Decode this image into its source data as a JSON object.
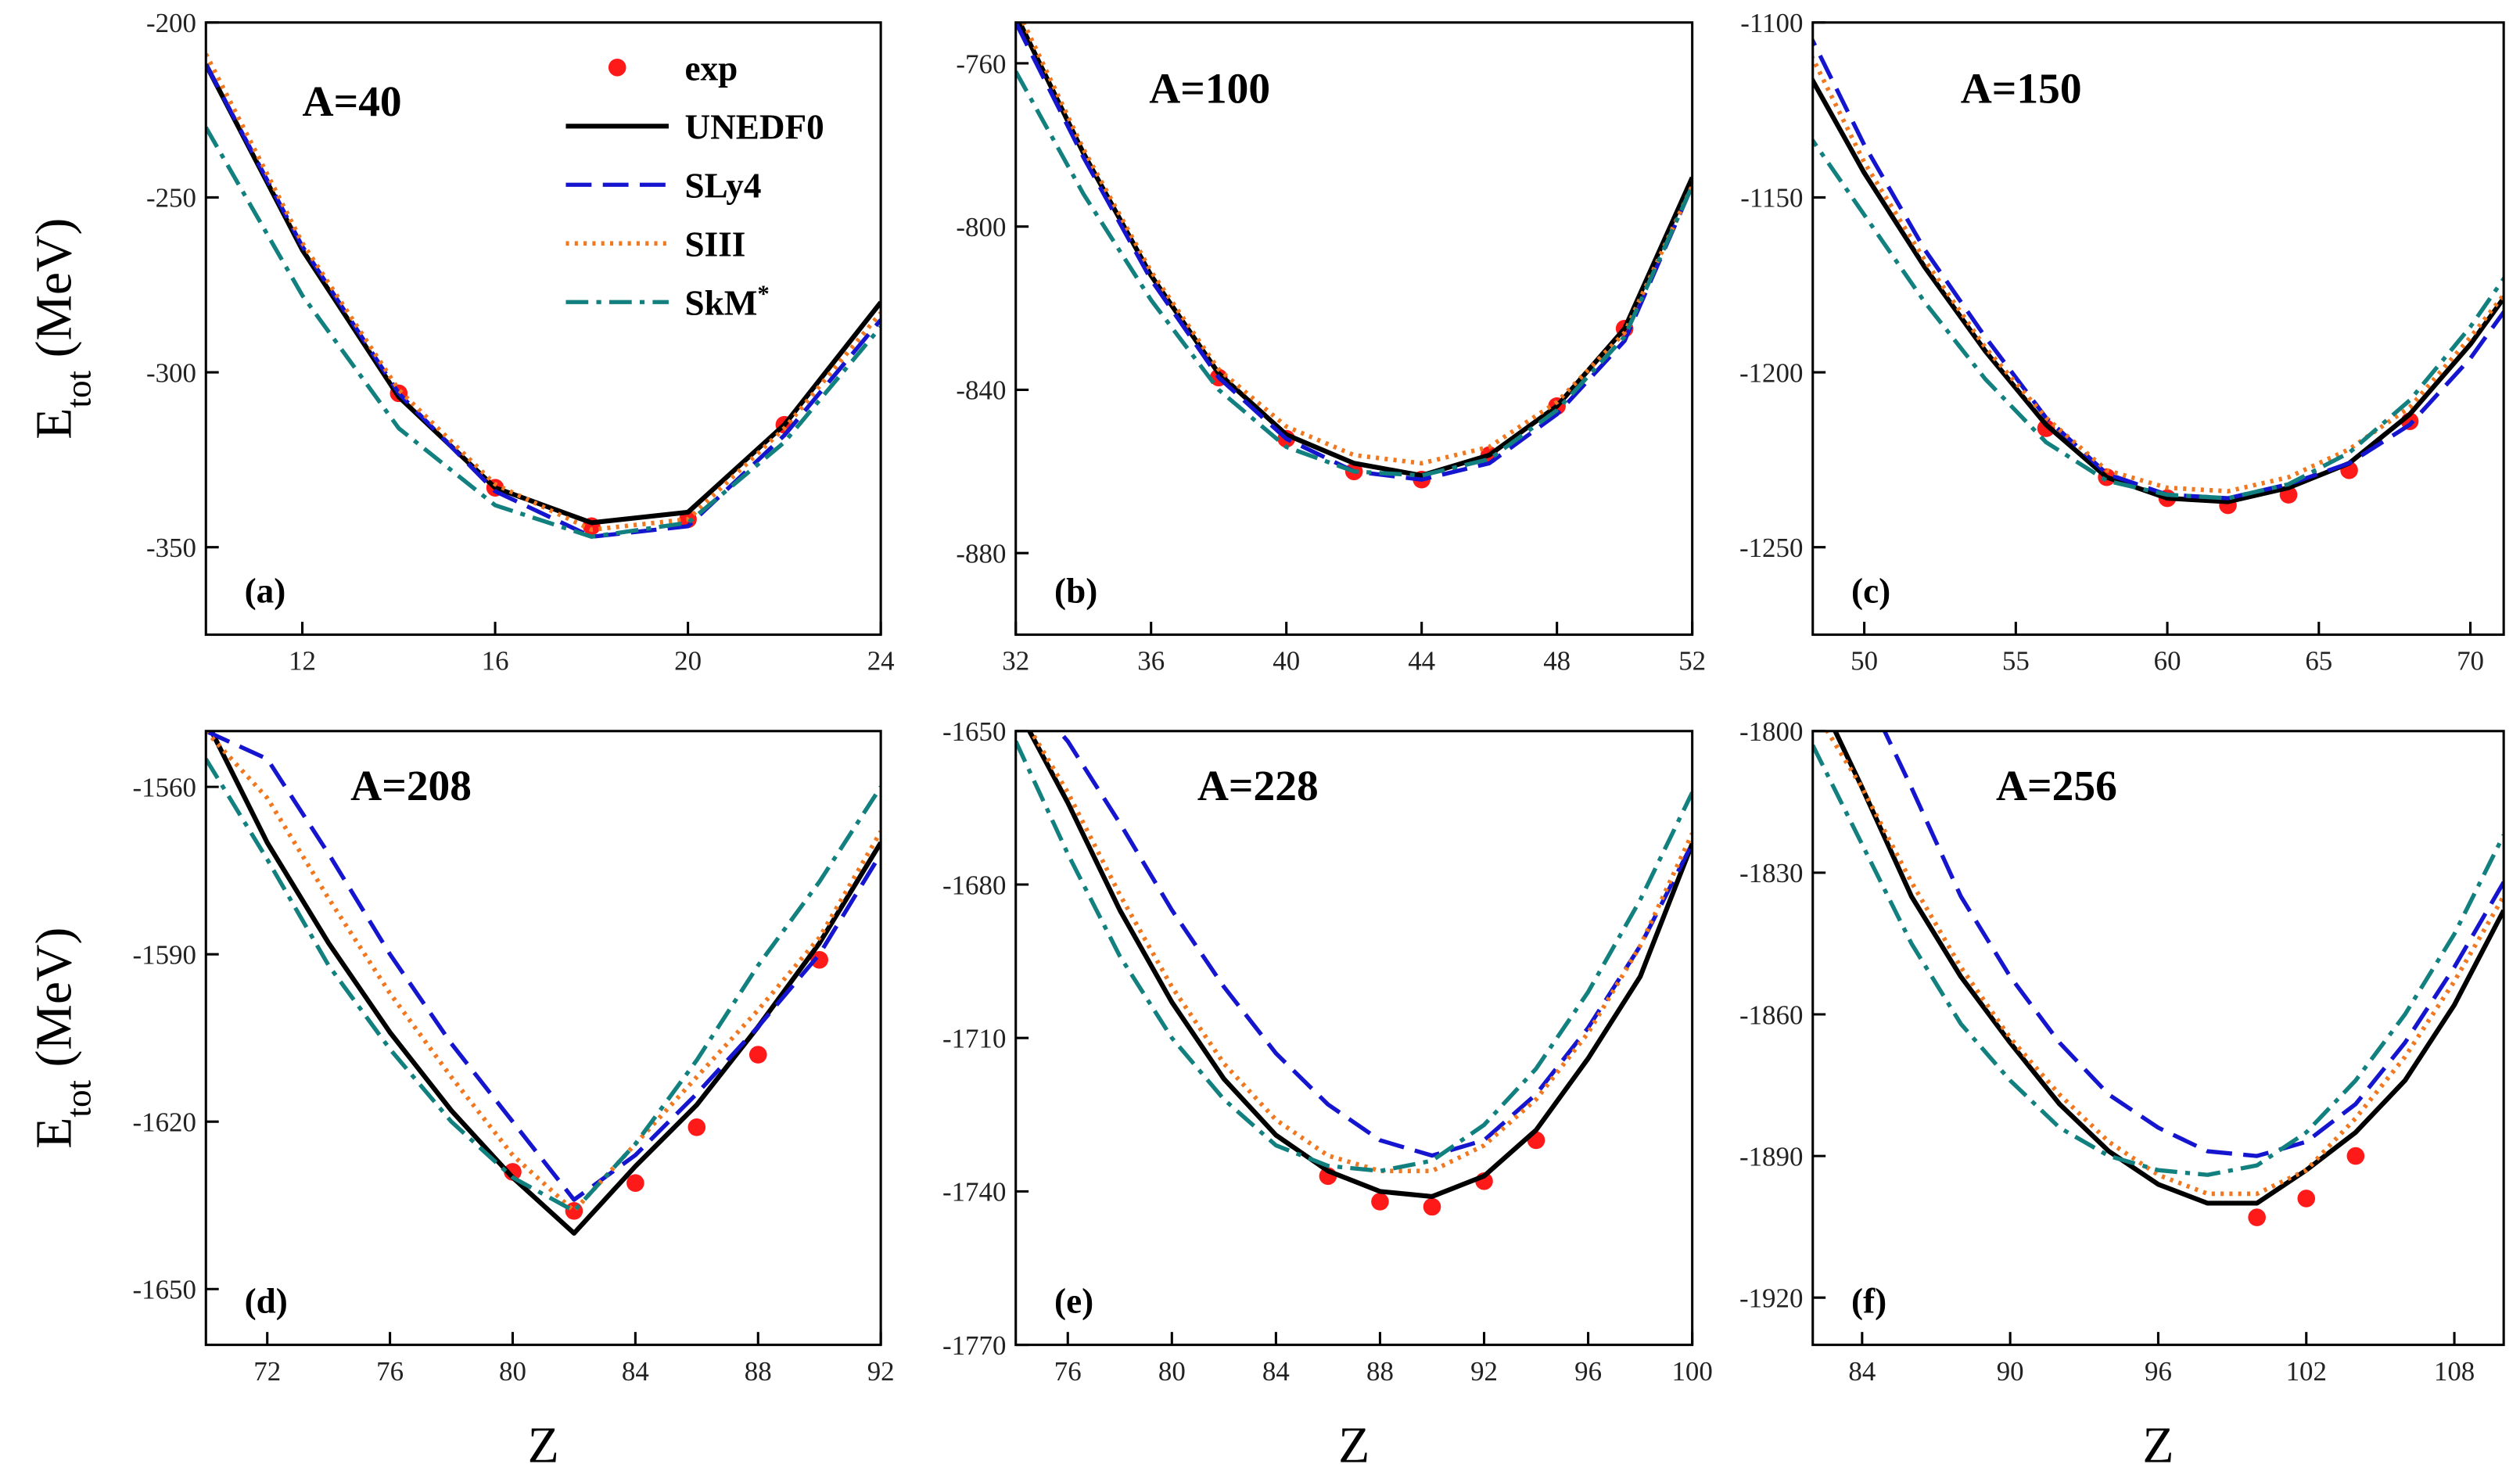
{
  "chart_data": [
    {
      "type": "line",
      "title": "A=40",
      "panel_label": "(a)",
      "legend": "upper right",
      "ylabel": {
        "base": "E",
        "sub": "tot",
        "unit": "(MeV)"
      },
      "xlim": [
        10,
        24
      ],
      "xticks": [
        12,
        16,
        20,
        24
      ],
      "ylim": [
        -375,
        -200
      ],
      "yticks": [
        -200,
        -250,
        -300,
        -350
      ],
      "series": [
        {
          "name": "exp",
          "type": "scatter",
          "color": "#ff1a1a",
          "x": [
            14,
            16,
            18,
            20,
            22
          ],
          "values": [
            -306,
            -333,
            -344,
            -342,
            -315
          ]
        },
        {
          "name": "UNEDF0",
          "color": "#000000",
          "style": "solid",
          "x": [
            10,
            12,
            14,
            16,
            18,
            20,
            22,
            24
          ],
          "values": [
            -212,
            -265,
            -307,
            -333,
            -343,
            -340,
            -315,
            -280
          ]
        },
        {
          "name": "SLy4",
          "color": "#1515d0",
          "style": "dashed",
          "x": [
            10,
            12,
            14,
            16,
            18,
            20,
            22,
            24
          ],
          "values": [
            -212,
            -264,
            -306,
            -334,
            -347,
            -344,
            -318,
            -285
          ]
        },
        {
          "name": "SIII",
          "color": "#f07820",
          "style": "dotted",
          "x": [
            10,
            12,
            14,
            16,
            18,
            20,
            22,
            24
          ],
          "values": [
            -209,
            -263,
            -305,
            -332,
            -345,
            -342,
            -316,
            -283
          ]
        },
        {
          "name": "SkM*",
          "color": "#138080",
          "style": "dashdot",
          "x": [
            10,
            12,
            14,
            16,
            18,
            20,
            22,
            24
          ],
          "values": [
            -230,
            -278,
            -316,
            -338,
            -347,
            -343,
            -320,
            -287
          ]
        }
      ]
    },
    {
      "type": "line",
      "title": "A=100",
      "panel_label": "(b)",
      "xlim": [
        32,
        52
      ],
      "xticks": [
        32,
        36,
        40,
        44,
        48,
        52
      ],
      "ylim": [
        -900,
        -750
      ],
      "yticks": [
        -760,
        -800,
        -840,
        -880
      ],
      "series": [
        {
          "type": "scatter",
          "color": "#ff1a1a",
          "x": [
            38,
            40,
            42,
            44,
            46,
            48,
            50
          ],
          "values": [
            -837,
            -852,
            -860,
            -862,
            -856,
            -844,
            -825
          ]
        },
        {
          "color": "#000000",
          "style": "solid",
          "x": [
            32,
            34,
            36,
            38,
            40,
            42,
            44,
            46,
            48,
            50,
            52
          ],
          "values": [
            -748,
            -782,
            -812,
            -836,
            -851,
            -858,
            -861,
            -856,
            -844,
            -825,
            -788
          ]
        },
        {
          "color": "#1515d0",
          "style": "dashed",
          "x": [
            32,
            34,
            36,
            38,
            40,
            42,
            44,
            46,
            48,
            50,
            52
          ],
          "values": [
            -750,
            -783,
            -813,
            -837,
            -852,
            -860,
            -862,
            -858,
            -846,
            -828,
            -790
          ]
        },
        {
          "color": "#f07820",
          "style": "dotted",
          "x": [
            32,
            34,
            36,
            38,
            40,
            42,
            44,
            46,
            48,
            50,
            52
          ],
          "values": [
            -746,
            -781,
            -811,
            -835,
            -849,
            -856,
            -858,
            -854,
            -843,
            -826,
            -790
          ]
        },
        {
          "color": "#138080",
          "style": "dashdot",
          "x": [
            32,
            34,
            36,
            38,
            40,
            42,
            44,
            46,
            48,
            50,
            52
          ],
          "values": [
            -762,
            -792,
            -818,
            -840,
            -854,
            -860,
            -861,
            -857,
            -845,
            -827,
            -790
          ]
        }
      ]
    },
    {
      "type": "line",
      "title": "A=150",
      "panel_label": "(c)",
      "xlim": [
        48.3,
        71.1
      ],
      "xticks": [
        50,
        55,
        60,
        65,
        70
      ],
      "ylim": [
        -1275,
        -1100
      ],
      "yticks": [
        -1100,
        -1150,
        -1200,
        -1250
      ],
      "series": [
        {
          "type": "scatter",
          "color": "#ff1a1a",
          "x": [
            56,
            58,
            60,
            62,
            64,
            66,
            68
          ],
          "values": [
            -1216,
            -1230,
            -1236,
            -1238,
            -1235,
            -1228,
            -1214
          ]
        },
        {
          "color": "#000000",
          "style": "solid",
          "x": [
            48,
            50,
            52,
            54,
            56,
            58,
            60,
            62,
            64,
            66,
            68,
            70,
            72
          ],
          "values": [
            -1112,
            -1143,
            -1170,
            -1194,
            -1215,
            -1230,
            -1236,
            -1237,
            -1233,
            -1226,
            -1212,
            -1192,
            -1168
          ]
        },
        {
          "color": "#1515d0",
          "style": "dashed",
          "x": [
            48,
            50,
            52,
            54,
            56,
            58,
            60,
            62,
            64,
            66,
            68,
            70,
            72
          ],
          "values": [
            -1100,
            -1135,
            -1165,
            -1190,
            -1213,
            -1229,
            -1235,
            -1236,
            -1232,
            -1226,
            -1215,
            -1196,
            -1172
          ]
        },
        {
          "color": "#f07820",
          "style": "dotted",
          "x": [
            48,
            50,
            52,
            54,
            56,
            58,
            60,
            62,
            64,
            66,
            68,
            70,
            72
          ],
          "values": [
            -1105,
            -1140,
            -1168,
            -1193,
            -1213,
            -1228,
            -1233,
            -1234,
            -1230,
            -1222,
            -1210,
            -1190,
            -1168
          ]
        },
        {
          "color": "#138080",
          "style": "dashdot",
          "x": [
            48,
            50,
            52,
            54,
            56,
            58,
            60,
            62,
            64,
            66,
            68,
            70,
            72
          ],
          "values": [
            -1130,
            -1155,
            -1180,
            -1202,
            -1220,
            -1231,
            -1235,
            -1236,
            -1232,
            -1223,
            -1208,
            -1187,
            -1162
          ]
        }
      ]
    },
    {
      "type": "line",
      "title": "A=208",
      "panel_label": "(d)",
      "xlabel": "Z",
      "ylabel": {
        "base": "E",
        "sub": "tot",
        "unit": "(MeV)"
      },
      "xlim": [
        70,
        92
      ],
      "xticks": [
        72,
        76,
        80,
        84,
        88,
        92
      ],
      "ylim": [
        -1660,
        -1550
      ],
      "yticks": [
        -1560,
        -1590,
        -1620,
        -1650
      ],
      "series": [
        {
          "type": "scatter",
          "color": "#ff1a1a",
          "x": [
            80,
            82,
            84,
            86,
            88,
            90
          ],
          "values": [
            -1629,
            -1636,
            -1631,
            -1621,
            -1608,
            -1591
          ]
        },
        {
          "color": "#000000",
          "style": "solid",
          "x": [
            70,
            72,
            74,
            76,
            78,
            80,
            82,
            84,
            86,
            88,
            90,
            92
          ],
          "values": [
            -1548,
            -1570,
            -1588,
            -1604,
            -1618,
            -1630,
            -1640,
            -1628,
            -1617,
            -1603,
            -1588,
            -1570
          ]
        },
        {
          "color": "#1515d0",
          "style": "dashed",
          "x": [
            70,
            72,
            74,
            76,
            78,
            80,
            82,
            84,
            86,
            88,
            90,
            92
          ],
          "values": [
            -1550,
            -1555,
            -1572,
            -1590,
            -1606,
            -1620,
            -1634,
            -1626,
            -1615,
            -1603,
            -1590,
            -1572
          ]
        },
        {
          "color": "#f07820",
          "style": "dotted",
          "x": [
            70,
            72,
            74,
            76,
            78,
            80,
            82,
            84,
            86,
            88,
            90,
            92
          ],
          "values": [
            -1550,
            -1562,
            -1580,
            -1597,
            -1612,
            -1626,
            -1636,
            -1624,
            -1612,
            -1600,
            -1587,
            -1568
          ]
        },
        {
          "color": "#138080",
          "style": "dashdot",
          "x": [
            70,
            72,
            74,
            76,
            78,
            80,
            82,
            84,
            86,
            88,
            90,
            92
          ],
          "values": [
            -1555,
            -1573,
            -1592,
            -1607,
            -1620,
            -1630,
            -1636,
            -1624,
            -1609,
            -1592,
            -1577,
            -1560
          ]
        }
      ]
    },
    {
      "type": "line",
      "title": "A=228",
      "panel_label": "(e)",
      "xlabel": "Z",
      "xlim": [
        74,
        100
      ],
      "xticks": [
        76,
        80,
        84,
        88,
        92,
        96,
        100
      ],
      "ylim": [
        -1770,
        -1650
      ],
      "yticks": [
        -1650,
        -1680,
        -1710,
        -1740,
        -1770
      ],
      "series": [
        {
          "type": "scatter",
          "color": "#ff1a1a",
          "x": [
            86,
            88,
            90,
            92,
            94
          ],
          "values": [
            -1737,
            -1742,
            -1743,
            -1738,
            -1730
          ]
        },
        {
          "color": "#000000",
          "style": "solid",
          "x": [
            74,
            76,
            78,
            80,
            82,
            84,
            86,
            88,
            90,
            92,
            94,
            96,
            98,
            100
          ],
          "values": [
            -1645,
            -1664,
            -1685,
            -1703,
            -1718,
            -1729,
            -1736,
            -1740,
            -1741,
            -1737,
            -1728,
            -1714,
            -1698,
            -1672
          ]
        },
        {
          "color": "#1515d0",
          "style": "dashed",
          "x": [
            74,
            76,
            78,
            80,
            82,
            84,
            86,
            88,
            90,
            92,
            94,
            96,
            98,
            100
          ],
          "values": [
            -1640,
            -1652,
            -1668,
            -1685,
            -1700,
            -1713,
            -1723,
            -1730,
            -1733,
            -1730,
            -1721,
            -1708,
            -1692,
            -1672
          ]
        },
        {
          "color": "#f07820",
          "style": "dotted",
          "x": [
            74,
            76,
            78,
            80,
            82,
            84,
            86,
            88,
            90,
            92,
            94,
            96,
            98,
            100
          ],
          "values": [
            -1645,
            -1662,
            -1682,
            -1700,
            -1715,
            -1726,
            -1733,
            -1736,
            -1736,
            -1731,
            -1722,
            -1709,
            -1692,
            -1670
          ]
        },
        {
          "color": "#138080",
          "style": "dashdot",
          "x": [
            74,
            76,
            78,
            80,
            82,
            84,
            86,
            88,
            90,
            92,
            94,
            96,
            98,
            100
          ],
          "values": [
            -1652,
            -1674,
            -1694,
            -1710,
            -1722,
            -1731,
            -1735,
            -1736,
            -1734,
            -1727,
            -1716,
            -1701,
            -1683,
            -1662
          ]
        }
      ]
    },
    {
      "type": "line",
      "title": "A=256",
      "panel_label": "(f)",
      "xlabel": "Z",
      "xlim": [
        82,
        110
      ],
      "xticks": [
        84,
        90,
        96,
        102,
        108
      ],
      "ylim": [
        -1930,
        -1800
      ],
      "yticks": [
        -1800,
        -1830,
        -1860,
        -1890,
        -1920
      ],
      "series": [
        {
          "type": "scatter",
          "color": "#ff1a1a",
          "x": [
            100,
            102,
            104
          ],
          "values": [
            -1903,
            -1899,
            -1890
          ]
        },
        {
          "color": "#000000",
          "style": "solid",
          "x": [
            82,
            84,
            86,
            88,
            90,
            92,
            94,
            96,
            98,
            100,
            102,
            104,
            106,
            108,
            110
          ],
          "values": [
            -1790,
            -1812,
            -1835,
            -1852,
            -1866,
            -1879,
            -1889,
            -1896,
            -1900,
            -1900,
            -1893,
            -1885,
            -1874,
            -1858,
            -1838
          ]
        },
        {
          "color": "#1515d0",
          "style": "dashed",
          "x": [
            82,
            84,
            86,
            88,
            90,
            92,
            94,
            96,
            98,
            100,
            102,
            104,
            106,
            108,
            110
          ],
          "values": [
            -1770,
            -1790,
            -1812,
            -1835,
            -1852,
            -1866,
            -1877,
            -1884,
            -1889,
            -1890,
            -1887,
            -1879,
            -1866,
            -1850,
            -1832
          ]
        },
        {
          "color": "#f07820",
          "style": "dotted",
          "x": [
            82,
            84,
            86,
            88,
            90,
            92,
            94,
            96,
            98,
            100,
            102,
            104,
            106,
            108,
            110
          ],
          "values": [
            -1795,
            -1812,
            -1832,
            -1850,
            -1865,
            -1877,
            -1887,
            -1894,
            -1898,
            -1898,
            -1893,
            -1882,
            -1869,
            -1853,
            -1835
          ]
        },
        {
          "color": "#138080",
          "style": "dashdot",
          "x": [
            82,
            84,
            86,
            88,
            90,
            92,
            94,
            96,
            98,
            100,
            102,
            104,
            106,
            108,
            110
          ],
          "values": [
            -1803,
            -1824,
            -1845,
            -1862,
            -1874,
            -1884,
            -1890,
            -1893,
            -1894,
            -1892,
            -1885,
            -1874,
            -1860,
            -1843,
            -1822
          ]
        }
      ]
    }
  ]
}
